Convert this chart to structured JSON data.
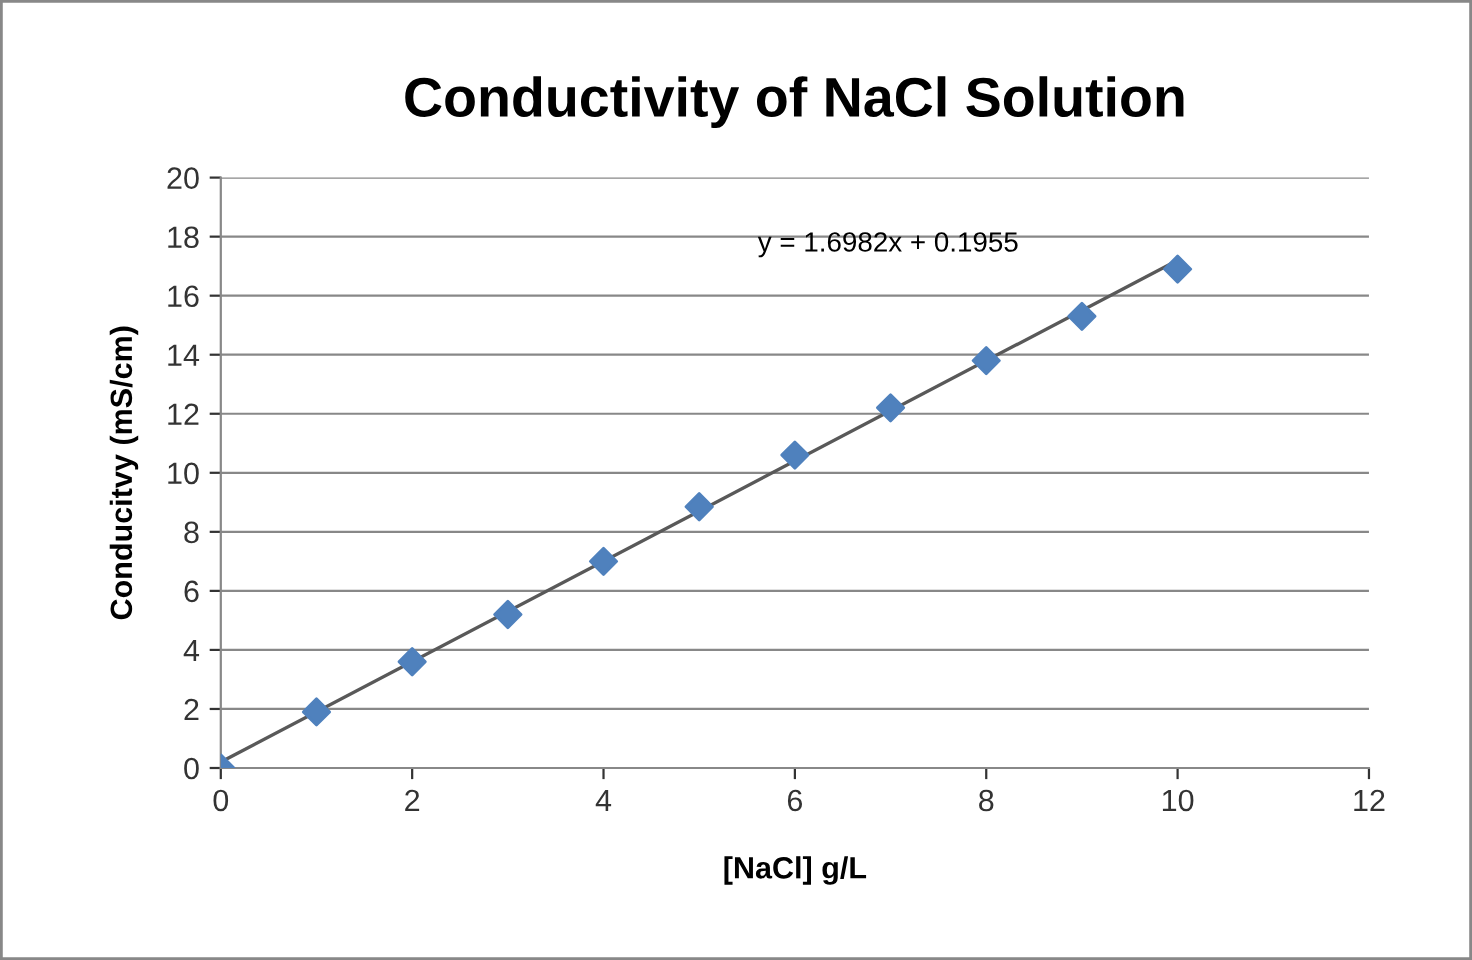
{
  "chart_data": {
    "type": "scatter",
    "title": "Conductivity of NaCl Solution",
    "xlabel": "[NaCl] g/L",
    "ylabel": "Conducitvy (mS/cm)",
    "series": [
      {
        "color": "#4f81bd",
        "marker": "diamond",
        "x": [
          0,
          1,
          2,
          3,
          4,
          5,
          6,
          7,
          8,
          9,
          10
        ],
        "values": [
          0,
          1.9,
          3.6,
          5.2,
          7.0,
          8.85,
          10.6,
          12.2,
          13.8,
          15.3,
          16.9
        ]
      },
      {
        "type": "line",
        "color": "#595959",
        "marker": "none",
        "x": [
          0,
          10
        ],
        "values": [
          0.2,
          17.2
        ]
      }
    ],
    "annotations": [
      "y = 1.6982x + 0.1955"
    ],
    "xlim": [
      0,
      12
    ],
    "xticks": [
      0,
      2,
      4,
      6,
      8,
      10,
      12
    ],
    "ylim": [
      0,
      20
    ],
    "yticks": [
      0,
      2,
      4,
      6,
      8,
      10,
      12,
      14,
      16,
      18,
      20
    ],
    "grid": "y",
    "legend": false
  }
}
